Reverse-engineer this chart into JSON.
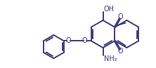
{
  "bg_color": "#ffffff",
  "lc": "#3c3c7c",
  "lw": 1.4,
  "fs": 7.0,
  "fig_w": 2.22,
  "fig_h": 0.97,
  "dpi": 100,
  "xlim": [
    0,
    10.0
  ],
  "ylim": [
    0,
    4.37
  ]
}
